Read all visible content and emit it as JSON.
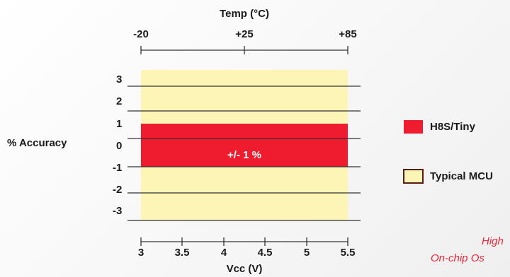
{
  "temp_axis": {
    "title": "Temp (°C)",
    "ticks": [
      "-20",
      "+25",
      "+85"
    ]
  },
  "y_axis": {
    "title": "% Accuracy",
    "ticks": [
      "3",
      "2",
      "1",
      "0",
      "-1",
      "-2",
      "-3"
    ]
  },
  "x_axis": {
    "title": "Vcc (V)",
    "ticks": [
      "3",
      "3.5",
      "4",
      "4.5",
      "5",
      "5.5"
    ]
  },
  "bands": {
    "h8s_label": "+/- 1 %",
    "h8s_range": [
      -1,
      1
    ],
    "typical_range": [
      -3.4,
      3.3
    ]
  },
  "legend": {
    "h8s": "H8S/Tiny",
    "typical": "Typical MCU"
  },
  "callout": {
    "line1": "High",
    "line2": "On-chip Os"
  },
  "colors": {
    "h8s": "#ee1c2e",
    "typical": "#fdf5b6",
    "typical_border": "#5a1c10"
  }
}
